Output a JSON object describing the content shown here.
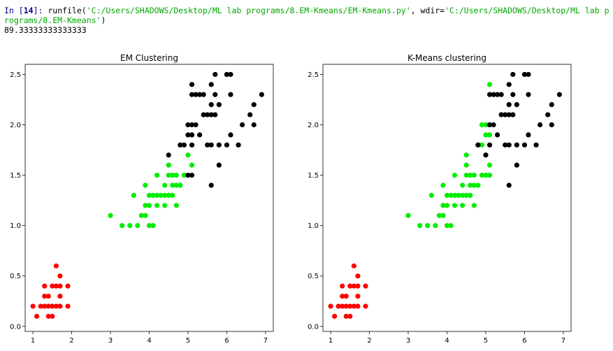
{
  "console": {
    "prompt_prefix": "In [",
    "prompt_number": "14",
    "prompt_suffix": "]: ",
    "call_start": "runfile(",
    "file_path": "'C:/Users/SHADOWS/Desktop/ML lab programs/8.EM-Kmeans/EM-Kmeans.py'",
    "sep": ", wdir=",
    "wdir_path": "'C:/Users/SHADOWS/Desktop/ML lab programs/8.EM-Kmeans'",
    "call_end": ")",
    "output": "89.33333333333333"
  },
  "colors": {
    "class_red": "#ff0000",
    "class_green": "#00ee00",
    "class_black": "#000000"
  },
  "chart_data": [
    {
      "type": "scatter",
      "title": "EM Clustering",
      "xlabel": "",
      "ylabel": "",
      "xlim": [
        0.8,
        7.2
      ],
      "ylim": [
        -0.05,
        2.6
      ],
      "xticks": [
        "1",
        "2",
        "3",
        "4",
        "5",
        "6",
        "7"
      ],
      "yticks": [
        "0.0",
        "0.5",
        "1.0",
        "1.5",
        "2.0",
        "2.5"
      ],
      "series": [
        {
          "color": "#ff0000",
          "points": [
            [
              1.0,
              0.2
            ],
            [
              1.1,
              0.1
            ],
            [
              1.2,
              0.2
            ],
            [
              1.3,
              0.2
            ],
            [
              1.3,
              0.3
            ],
            [
              1.3,
              0.4
            ],
            [
              1.4,
              0.1
            ],
            [
              1.4,
              0.2
            ],
            [
              1.4,
              0.3
            ],
            [
              1.5,
              0.1
            ],
            [
              1.5,
              0.2
            ],
            [
              1.5,
              0.4
            ],
            [
              1.6,
              0.2
            ],
            [
              1.6,
              0.4
            ],
            [
              1.6,
              0.6
            ],
            [
              1.7,
              0.2
            ],
            [
              1.7,
              0.3
            ],
            [
              1.7,
              0.4
            ],
            [
              1.7,
              0.5
            ],
            [
              1.9,
              0.2
            ],
            [
              1.9,
              0.4
            ]
          ]
        },
        {
          "color": "#00ee00",
          "points": [
            [
              3.0,
              1.1
            ],
            [
              3.3,
              1.0
            ],
            [
              3.5,
              1.0
            ],
            [
              3.6,
              1.3
            ],
            [
              3.7,
              1.0
            ],
            [
              3.8,
              1.1
            ],
            [
              3.9,
              1.1
            ],
            [
              3.9,
              1.2
            ],
            [
              3.9,
              1.4
            ],
            [
              4.0,
              1.0
            ],
            [
              4.0,
              1.2
            ],
            [
              4.0,
              1.3
            ],
            [
              4.1,
              1.0
            ],
            [
              4.1,
              1.3
            ],
            [
              4.2,
              1.2
            ],
            [
              4.2,
              1.3
            ],
            [
              4.2,
              1.5
            ],
            [
              4.3,
              1.3
            ],
            [
              4.4,
              1.2
            ],
            [
              4.4,
              1.3
            ],
            [
              4.4,
              1.4
            ],
            [
              4.5,
              1.3
            ],
            [
              4.5,
              1.5
            ],
            [
              4.5,
              1.6
            ],
            [
              4.6,
              1.3
            ],
            [
              4.6,
              1.4
            ],
            [
              4.6,
              1.5
            ],
            [
              4.7,
              1.2
            ],
            [
              4.7,
              1.4
            ],
            [
              4.7,
              1.5
            ],
            [
              4.8,
              1.4
            ],
            [
              4.8,
              1.8
            ],
            [
              4.9,
              1.5
            ],
            [
              5.0,
              1.7
            ],
            [
              5.1,
              1.6
            ]
          ]
        },
        {
          "color": "#000000",
          "points": [
            [
              4.5,
              1.7
            ],
            [
              4.8,
              1.8
            ],
            [
              4.9,
              1.8
            ],
            [
              5.0,
              1.5
            ],
            [
              5.0,
              1.9
            ],
            [
              5.0,
              2.0
            ],
            [
              5.1,
              1.5
            ],
            [
              5.1,
              1.8
            ],
            [
              5.1,
              1.9
            ],
            [
              5.1,
              2.0
            ],
            [
              5.1,
              2.3
            ],
            [
              5.1,
              2.4
            ],
            [
              5.2,
              2.0
            ],
            [
              5.2,
              2.3
            ],
            [
              5.3,
              1.9
            ],
            [
              5.3,
              2.3
            ],
            [
              5.4,
              2.1
            ],
            [
              5.4,
              2.3
            ],
            [
              5.5,
              1.8
            ],
            [
              5.5,
              2.1
            ],
            [
              5.6,
              1.4
            ],
            [
              5.6,
              1.8
            ],
            [
              5.6,
              2.1
            ],
            [
              5.6,
              2.2
            ],
            [
              5.6,
              2.4
            ],
            [
              5.7,
              2.1
            ],
            [
              5.7,
              2.3
            ],
            [
              5.7,
              2.5
            ],
            [
              5.8,
              1.6
            ],
            [
              5.8,
              1.8
            ],
            [
              5.8,
              2.2
            ],
            [
              6.0,
              1.8
            ],
            [
              6.0,
              2.5
            ],
            [
              6.1,
              1.9
            ],
            [
              6.1,
              2.3
            ],
            [
              6.1,
              2.5
            ],
            [
              6.3,
              1.8
            ],
            [
              6.4,
              2.0
            ],
            [
              6.6,
              2.1
            ],
            [
              6.7,
              2.0
            ],
            [
              6.7,
              2.2
            ],
            [
              6.9,
              2.3
            ]
          ]
        }
      ]
    },
    {
      "type": "scatter",
      "title": "K-Means clustering",
      "xlabel": "",
      "ylabel": "",
      "xlim": [
        0.8,
        7.2
      ],
      "ylim": [
        -0.05,
        2.6
      ],
      "xticks": [
        "1",
        "2",
        "3",
        "4",
        "5",
        "6",
        "7"
      ],
      "yticks": [
        "0.0",
        "0.5",
        "1.0",
        "1.5",
        "2.0",
        "2.5"
      ],
      "series": [
        {
          "color": "#ff0000",
          "points": [
            [
              1.0,
              0.2
            ],
            [
              1.1,
              0.1
            ],
            [
              1.2,
              0.2
            ],
            [
              1.3,
              0.2
            ],
            [
              1.3,
              0.3
            ],
            [
              1.3,
              0.4
            ],
            [
              1.4,
              0.1
            ],
            [
              1.4,
              0.2
            ],
            [
              1.4,
              0.3
            ],
            [
              1.5,
              0.1
            ],
            [
              1.5,
              0.2
            ],
            [
              1.5,
              0.4
            ],
            [
              1.6,
              0.2
            ],
            [
              1.6,
              0.4
            ],
            [
              1.6,
              0.6
            ],
            [
              1.7,
              0.2
            ],
            [
              1.7,
              0.3
            ],
            [
              1.7,
              0.4
            ],
            [
              1.7,
              0.5
            ],
            [
              1.9,
              0.2
            ],
            [
              1.9,
              0.4
            ]
          ]
        },
        {
          "color": "#00ee00",
          "points": [
            [
              3.0,
              1.1
            ],
            [
              3.3,
              1.0
            ],
            [
              3.5,
              1.0
            ],
            [
              3.6,
              1.3
            ],
            [
              3.7,
              1.0
            ],
            [
              3.8,
              1.1
            ],
            [
              3.9,
              1.1
            ],
            [
              3.9,
              1.2
            ],
            [
              3.9,
              1.4
            ],
            [
              4.0,
              1.0
            ],
            [
              4.0,
              1.2
            ],
            [
              4.0,
              1.3
            ],
            [
              4.1,
              1.0
            ],
            [
              4.1,
              1.3
            ],
            [
              4.2,
              1.2
            ],
            [
              4.2,
              1.3
            ],
            [
              4.2,
              1.5
            ],
            [
              4.3,
              1.3
            ],
            [
              4.4,
              1.2
            ],
            [
              4.4,
              1.3
            ],
            [
              4.4,
              1.4
            ],
            [
              4.5,
              1.3
            ],
            [
              4.5,
              1.5
            ],
            [
              4.5,
              1.6
            ],
            [
              4.5,
              1.7
            ],
            [
              4.6,
              1.3
            ],
            [
              4.6,
              1.4
            ],
            [
              4.6,
              1.5
            ],
            [
              4.7,
              1.2
            ],
            [
              4.7,
              1.4
            ],
            [
              4.7,
              1.5
            ],
            [
              4.8,
              1.4
            ],
            [
              4.8,
              1.8
            ],
            [
              4.9,
              1.5
            ],
            [
              4.9,
              1.8
            ],
            [
              4.9,
              2.0
            ],
            [
              5.0,
              1.5
            ],
            [
              5.0,
              1.7
            ],
            [
              5.0,
              1.9
            ],
            [
              5.0,
              2.0
            ],
            [
              5.1,
              1.5
            ],
            [
              5.1,
              1.6
            ],
            [
              5.1,
              1.9
            ],
            [
              5.1,
              2.4
            ]
          ]
        },
        {
          "color": "#000000",
          "points": [
            [
              4.8,
              1.8
            ],
            [
              5.0,
              1.7
            ],
            [
              5.1,
              1.8
            ],
            [
              5.1,
              2.0
            ],
            [
              5.1,
              2.3
            ],
            [
              5.2,
              2.0
            ],
            [
              5.2,
              2.3
            ],
            [
              5.3,
              1.9
            ],
            [
              5.3,
              2.3
            ],
            [
              5.4,
              2.1
            ],
            [
              5.4,
              2.3
            ],
            [
              5.5,
              1.8
            ],
            [
              5.5,
              2.1
            ],
            [
              5.6,
              1.4
            ],
            [
              5.6,
              1.8
            ],
            [
              5.6,
              2.1
            ],
            [
              5.6,
              2.2
            ],
            [
              5.6,
              2.4
            ],
            [
              5.7,
              2.1
            ],
            [
              5.7,
              2.3
            ],
            [
              5.7,
              2.5
            ],
            [
              5.8,
              1.6
            ],
            [
              5.8,
              1.8
            ],
            [
              5.8,
              2.2
            ],
            [
              6.0,
              1.8
            ],
            [
              6.0,
              2.5
            ],
            [
              6.1,
              1.9
            ],
            [
              6.1,
              2.3
            ],
            [
              6.1,
              2.5
            ],
            [
              6.3,
              1.8
            ],
            [
              6.4,
              2.0
            ],
            [
              6.6,
              2.1
            ],
            [
              6.7,
              2.0
            ],
            [
              6.7,
              2.2
            ],
            [
              6.9,
              2.3
            ]
          ]
        }
      ]
    }
  ]
}
